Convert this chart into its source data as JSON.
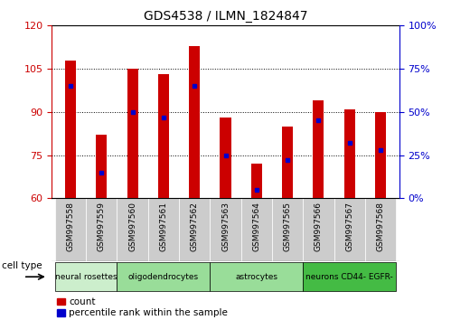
{
  "title": "GDS4538 / ILMN_1824847",
  "samples": [
    "GSM997558",
    "GSM997559",
    "GSM997560",
    "GSM997561",
    "GSM997562",
    "GSM997563",
    "GSM997564",
    "GSM997565",
    "GSM997566",
    "GSM997567",
    "GSM997568"
  ],
  "counts": [
    108,
    82,
    105,
    103,
    113,
    88,
    72,
    85,
    94,
    91,
    90
  ],
  "percentiles": [
    65,
    15,
    50,
    47,
    65,
    25,
    5,
    22,
    45,
    32,
    28
  ],
  "ylim_left": [
    60,
    120
  ],
  "ylim_right": [
    0,
    100
  ],
  "yticks_left": [
    60,
    75,
    90,
    105,
    120
  ],
  "yticks_right": [
    0,
    25,
    50,
    75,
    100
  ],
  "cell_type_groups": [
    {
      "label": "neural rosettes",
      "indices": [
        0,
        1
      ],
      "color": "#cceecc"
    },
    {
      "label": "oligodendrocytes",
      "indices": [
        2,
        3,
        4
      ],
      "color": "#99dd99"
    },
    {
      "label": "astrocytes",
      "indices": [
        5,
        6,
        7
      ],
      "color": "#99dd99"
    },
    {
      "label": "neurons CD44- EGFR-",
      "indices": [
        8,
        9,
        10
      ],
      "color": "#44bb44"
    }
  ],
  "bar_color": "#cc0000",
  "dot_color": "#0000cc",
  "bar_width": 0.35,
  "left_tick_color": "#cc0000",
  "right_tick_color": "#0000cc",
  "background_plot": "#ffffff",
  "background_xtick": "#cccccc"
}
